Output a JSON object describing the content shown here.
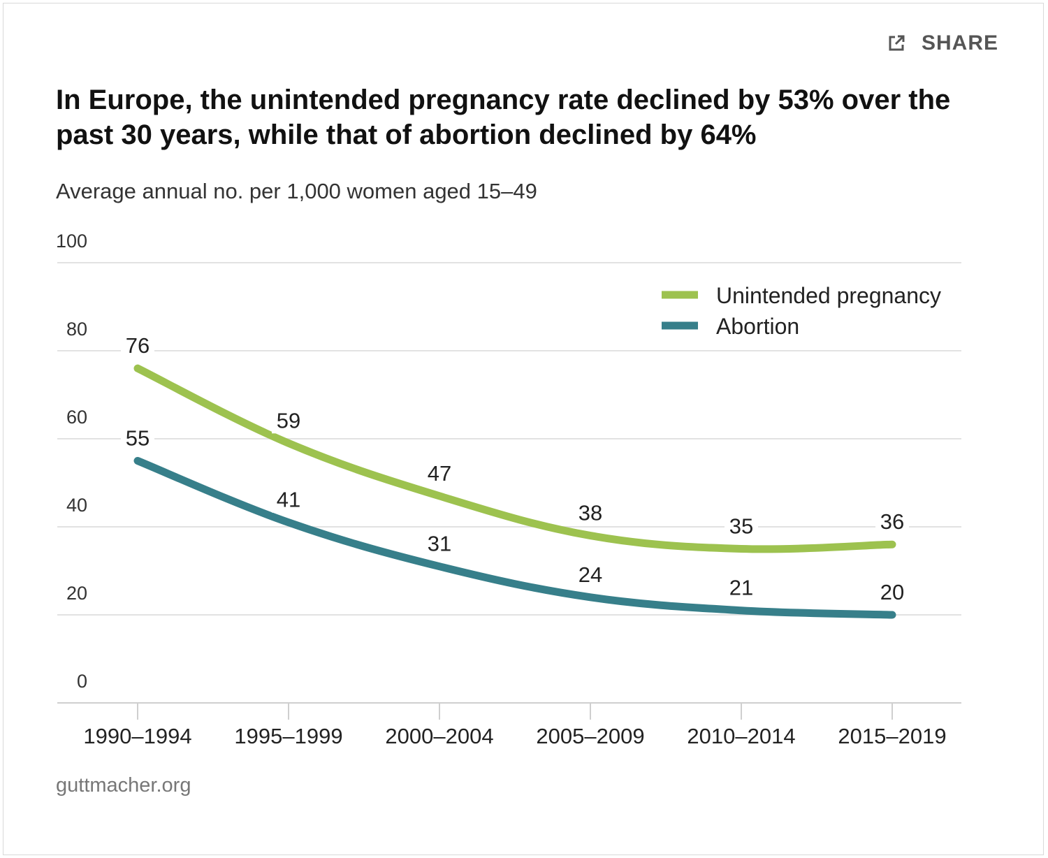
{
  "share": {
    "label": "SHARE",
    "icon": "external-link-icon"
  },
  "chart_data": {
    "type": "line",
    "title": "In Europe, the unintended pregnancy rate declined by 53% over the past 30 years, while that of abortion declined by 64%",
    "subtitle": "Average annual no. per 1,000 women aged 15–49",
    "categories": [
      "1990–1994",
      "1995–1999",
      "2000–2004",
      "2005–2009",
      "2010–2014",
      "2015–2019"
    ],
    "y_ticks": [
      0,
      20,
      40,
      60,
      80,
      100
    ],
    "ylim": [
      0,
      100
    ],
    "grid": true,
    "legend_position": "top-right",
    "series": [
      {
        "name": "Unintended pregnancy",
        "color": "#9dc24f",
        "values": [
          76,
          59,
          47,
          38,
          35,
          36
        ]
      },
      {
        "name": "Abortion",
        "color": "#377f8a",
        "values": [
          55,
          41,
          31,
          24,
          21,
          20
        ]
      }
    ]
  },
  "footer": {
    "source": "guttmacher.org"
  }
}
